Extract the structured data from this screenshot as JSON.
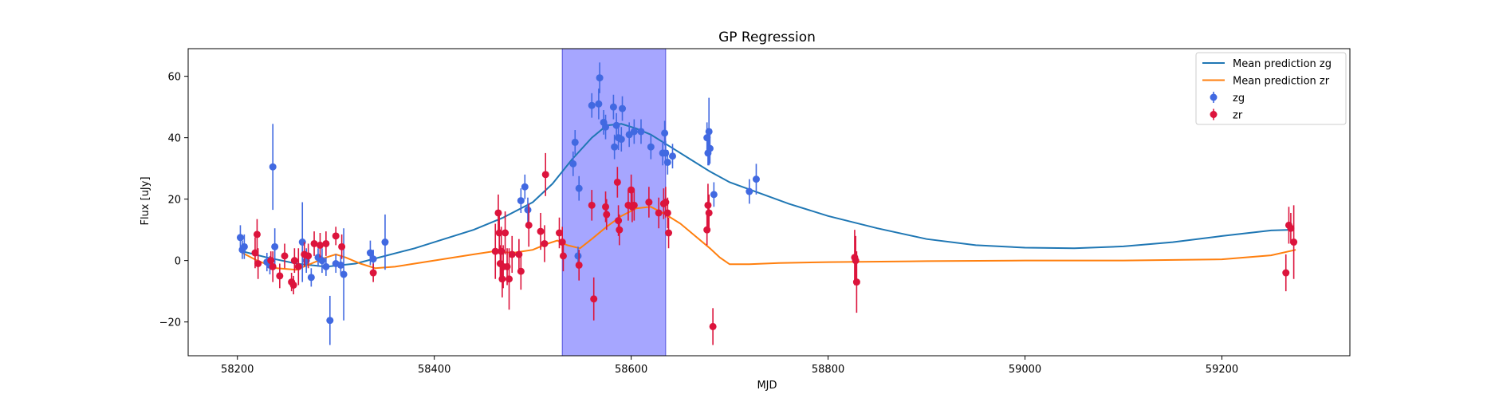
{
  "chart_data": {
    "type": "scatter",
    "title": "GP Regression",
    "xlabel": "MJD",
    "ylabel": "Flux [uJy]",
    "xlim": [
      58150,
      59330
    ],
    "ylim": [
      -31,
      69
    ],
    "x_ticks": [
      58200,
      58400,
      58600,
      58800,
      59000,
      59200
    ],
    "y_ticks": [
      -20,
      0,
      20,
      40,
      60
    ],
    "grid": false,
    "legend_position": "top-right",
    "shaded_region": {
      "x_start": 58530,
      "x_end": 58635,
      "color": "#a6a6ff"
    },
    "series": [
      {
        "name": "Mean prediction zg",
        "kind": "line",
        "color": "#1f77b4",
        "points": [
          [
            58205,
            3
          ],
          [
            58230,
            1
          ],
          [
            58260,
            -1
          ],
          [
            58290,
            -2
          ],
          [
            58320,
            -1
          ],
          [
            58350,
            1.5
          ],
          [
            58380,
            4
          ],
          [
            58410,
            7
          ],
          [
            58440,
            10
          ],
          [
            58470,
            14
          ],
          [
            58500,
            19
          ],
          [
            58520,
            25
          ],
          [
            58540,
            33
          ],
          [
            58560,
            40
          ],
          [
            58575,
            44
          ],
          [
            58590,
            44.5
          ],
          [
            58605,
            43
          ],
          [
            58620,
            41
          ],
          [
            58640,
            37
          ],
          [
            58660,
            33
          ],
          [
            58680,
            29
          ],
          [
            58700,
            25.5
          ],
          [
            58730,
            22
          ],
          [
            58760,
            18.5
          ],
          [
            58800,
            14.5
          ],
          [
            58850,
            10.5
          ],
          [
            58900,
            7
          ],
          [
            58950,
            5
          ],
          [
            59000,
            4.2
          ],
          [
            59050,
            4
          ],
          [
            59100,
            4.6
          ],
          [
            59150,
            6
          ],
          [
            59200,
            8
          ],
          [
            59250,
            9.8
          ],
          [
            59270,
            10
          ]
        ]
      },
      {
        "name": "Mean prediction zr",
        "kind": "line",
        "color": "#ff7f0e",
        "points": [
          [
            58205,
            2.5
          ],
          [
            58220,
            0
          ],
          [
            58240,
            -2.5
          ],
          [
            58260,
            -3
          ],
          [
            58275,
            -1
          ],
          [
            58290,
            1
          ],
          [
            58300,
            2
          ],
          [
            58310,
            1
          ],
          [
            58325,
            -1
          ],
          [
            58340,
            -2.5
          ],
          [
            58360,
            -2
          ],
          [
            58380,
            -1
          ],
          [
            58400,
            0
          ],
          [
            58420,
            1
          ],
          [
            58440,
            2
          ],
          [
            58460,
            3
          ],
          [
            58480,
            2.5
          ],
          [
            58500,
            3.5
          ],
          [
            58515,
            5.5
          ],
          [
            58525,
            6.5
          ],
          [
            58535,
            5
          ],
          [
            58548,
            4
          ],
          [
            58560,
            7
          ],
          [
            58575,
            11
          ],
          [
            58590,
            14.5
          ],
          [
            58605,
            17
          ],
          [
            58620,
            17.5
          ],
          [
            58635,
            15
          ],
          [
            58650,
            12
          ],
          [
            58665,
            8
          ],
          [
            58680,
            4
          ],
          [
            58690,
            1
          ],
          [
            58700,
            -1.2
          ],
          [
            58720,
            -1.2
          ],
          [
            58750,
            -0.8
          ],
          [
            58800,
            -0.5
          ],
          [
            58900,
            -0.2
          ],
          [
            59000,
            0
          ],
          [
            59100,
            0
          ],
          [
            59200,
            0.4
          ],
          [
            59250,
            1.7
          ],
          [
            59275,
            3.5
          ]
        ]
      },
      {
        "name": "zg",
        "kind": "errorbar",
        "color": "#4169e1",
        "points": [
          {
            "x": 58203,
            "y": 7.5,
            "err": 4
          },
          {
            "x": 58205,
            "y": 3.5,
            "err": 3
          },
          {
            "x": 58207,
            "y": 4.5,
            "err": 4
          },
          {
            "x": 58230,
            "y": -0.5,
            "err": 3
          },
          {
            "x": 58233,
            "y": -1.5,
            "err": 3
          },
          {
            "x": 58236,
            "y": 30.5,
            "err": 14
          },
          {
            "x": 58238,
            "y": 4.5,
            "err": 6
          },
          {
            "x": 58266,
            "y": 6,
            "err": 13
          },
          {
            "x": 58270,
            "y": 0,
            "err": 4
          },
          {
            "x": 58275,
            "y": -5.5,
            "err": 3
          },
          {
            "x": 58282,
            "y": 1,
            "err": 3
          },
          {
            "x": 58286,
            "y": 0,
            "err": 4
          },
          {
            "x": 58290,
            "y": -2,
            "err": 3
          },
          {
            "x": 58294,
            "y": -19.5,
            "err": 8
          },
          {
            "x": 58300,
            "y": -1,
            "err": 3
          },
          {
            "x": 58305,
            "y": -1.5,
            "err": 3
          },
          {
            "x": 58308,
            "y": -4.5,
            "err": 15
          },
          {
            "x": 58335,
            "y": 2.5,
            "err": 4
          },
          {
            "x": 58338,
            "y": 0.5,
            "err": 3
          },
          {
            "x": 58350,
            "y": 6,
            "err": 9
          },
          {
            "x": 58488,
            "y": 19.5,
            "err": 4
          },
          {
            "x": 58492,
            "y": 24,
            "err": 4
          },
          {
            "x": 58495,
            "y": 16.5,
            "err": 4
          },
          {
            "x": 58541,
            "y": 31.5,
            "err": 4
          },
          {
            "x": 58543,
            "y": 38.5,
            "err": 4
          },
          {
            "x": 58546,
            "y": 1.5,
            "err": 3
          },
          {
            "x": 58547,
            "y": 23.5,
            "err": 4
          },
          {
            "x": 58560,
            "y": 50.5,
            "err": 4
          },
          {
            "x": 58567,
            "y": 51,
            "err": 5
          },
          {
            "x": 58568,
            "y": 59.5,
            "err": 5
          },
          {
            "x": 58572,
            "y": 45,
            "err": 4
          },
          {
            "x": 58574,
            "y": 43.5,
            "err": 4
          },
          {
            "x": 58582,
            "y": 50,
            "err": 4
          },
          {
            "x": 58583,
            "y": 37,
            "err": 4
          },
          {
            "x": 58585,
            "y": 44,
            "err": 4
          },
          {
            "x": 58587,
            "y": 40,
            "err": 4
          },
          {
            "x": 58590,
            "y": 39.5,
            "err": 4
          },
          {
            "x": 58591,
            "y": 49.5,
            "err": 4
          },
          {
            "x": 58598,
            "y": 41,
            "err": 4
          },
          {
            "x": 58603,
            "y": 42,
            "err": 4
          },
          {
            "x": 58610,
            "y": 42,
            "err": 4
          },
          {
            "x": 58620,
            "y": 37,
            "err": 4
          },
          {
            "x": 58632,
            "y": 35,
            "err": 4
          },
          {
            "x": 58634,
            "y": 41.5,
            "err": 4
          },
          {
            "x": 58635,
            "y": 35,
            "err": 4
          },
          {
            "x": 58637,
            "y": 32,
            "err": 4
          },
          {
            "x": 58642,
            "y": 34,
            "err": 4
          },
          {
            "x": 58677,
            "y": 40,
            "err": 5
          },
          {
            "x": 58678,
            "y": 35,
            "err": 4
          },
          {
            "x": 58679,
            "y": 42,
            "err": 11
          },
          {
            "x": 58680,
            "y": 36.5,
            "err": 5
          },
          {
            "x": 58684,
            "y": 21.5,
            "err": 4
          },
          {
            "x": 58720,
            "y": 22.5,
            "err": 4
          },
          {
            "x": 58727,
            "y": 26.5,
            "err": 5
          }
        ]
      },
      {
        "name": "zr",
        "kind": "errorbar",
        "color": "#dc143c",
        "points": [
          {
            "x": 58218,
            "y": 2.5,
            "err": 5
          },
          {
            "x": 58220,
            "y": 8.5,
            "err": 5
          },
          {
            "x": 58221,
            "y": -1,
            "err": 5
          },
          {
            "x": 58234,
            "y": 0,
            "err": 3
          },
          {
            "x": 58236,
            "y": -2,
            "err": 5
          },
          {
            "x": 58243,
            "y": -5,
            "err": 4
          },
          {
            "x": 58248,
            "y": 1.5,
            "err": 4
          },
          {
            "x": 58255,
            "y": -7,
            "err": 3
          },
          {
            "x": 58257,
            "y": -8,
            "err": 3
          },
          {
            "x": 58258,
            "y": 0,
            "err": 4
          },
          {
            "x": 58262,
            "y": -2,
            "err": 6
          },
          {
            "x": 58268,
            "y": 2,
            "err": 4
          },
          {
            "x": 58272,
            "y": 1.5,
            "err": 4
          },
          {
            "x": 58278,
            "y": 5.5,
            "err": 4
          },
          {
            "x": 58284,
            "y": 5,
            "err": 4
          },
          {
            "x": 58290,
            "y": 5.5,
            "err": 4
          },
          {
            "x": 58300,
            "y": 8,
            "err": 3
          },
          {
            "x": 58306,
            "y": 4.5,
            "err": 4
          },
          {
            "x": 58338,
            "y": -4,
            "err": 3
          },
          {
            "x": 58462,
            "y": 3,
            "err": 9
          },
          {
            "x": 58465,
            "y": 15.5,
            "err": 6
          },
          {
            "x": 58466,
            "y": 9,
            "err": 6
          },
          {
            "x": 58467,
            "y": -1,
            "err": 6
          },
          {
            "x": 58468,
            "y": 3,
            "err": 8
          },
          {
            "x": 58469,
            "y": -6,
            "err": 6
          },
          {
            "x": 58470,
            "y": -2,
            "err": 7
          },
          {
            "x": 58472,
            "y": 9,
            "err": 7
          },
          {
            "x": 58474,
            "y": -2,
            "err": 6
          },
          {
            "x": 58476,
            "y": -6,
            "err": 10
          },
          {
            "x": 58479,
            "y": 2,
            "err": 6
          },
          {
            "x": 58486,
            "y": 2,
            "err": 5
          },
          {
            "x": 58488,
            "y": -3.5,
            "err": 6
          },
          {
            "x": 58496,
            "y": 11.5,
            "err": 7
          },
          {
            "x": 58508,
            "y": 9.5,
            "err": 6
          },
          {
            "x": 58512,
            "y": 5.5,
            "err": 6
          },
          {
            "x": 58513,
            "y": 28,
            "err": 7
          },
          {
            "x": 58527,
            "y": 9,
            "err": 5
          },
          {
            "x": 58530,
            "y": 6,
            "err": 5
          },
          {
            "x": 58531,
            "y": 1.5,
            "err": 5
          },
          {
            "x": 58547,
            "y": -1.5,
            "err": 5
          },
          {
            "x": 58560,
            "y": 18,
            "err": 5
          },
          {
            "x": 58562,
            "y": -12.5,
            "err": 7
          },
          {
            "x": 58574,
            "y": 17.5,
            "err": 5
          },
          {
            "x": 58575,
            "y": 15,
            "err": 5
          },
          {
            "x": 58586,
            "y": 25.5,
            "err": 5
          },
          {
            "x": 58587,
            "y": 13,
            "err": 5
          },
          {
            "x": 58588,
            "y": 10,
            "err": 5
          },
          {
            "x": 58597,
            "y": 18,
            "err": 5
          },
          {
            "x": 58600,
            "y": 23,
            "err": 5
          },
          {
            "x": 58601,
            "y": 17.5,
            "err": 5
          },
          {
            "x": 58603,
            "y": 18,
            "err": 5
          },
          {
            "x": 58618,
            "y": 19,
            "err": 5
          },
          {
            "x": 58628,
            "y": 15.5,
            "err": 5
          },
          {
            "x": 58633,
            "y": 18.5,
            "err": 5
          },
          {
            "x": 58635,
            "y": 19,
            "err": 5
          },
          {
            "x": 58637,
            "y": 15.5,
            "err": 5
          },
          {
            "x": 58638,
            "y": 9,
            "err": 5
          },
          {
            "x": 58677,
            "y": 10,
            "err": 5
          },
          {
            "x": 58678,
            "y": 18,
            "err": 7
          },
          {
            "x": 58679,
            "y": 15.5,
            "err": 6
          },
          {
            "x": 58683,
            "y": -21.5,
            "err": 6
          },
          {
            "x": 58827,
            "y": 1,
            "err": 9
          },
          {
            "x": 58828,
            "y": 0,
            "err": 8
          },
          {
            "x": 58829,
            "y": -7,
            "err": 10
          },
          {
            "x": 59265,
            "y": -4,
            "err": 6
          },
          {
            "x": 59268,
            "y": 11.5,
            "err": 6
          },
          {
            "x": 59270,
            "y": 10.5,
            "err": 5
          },
          {
            "x": 59273,
            "y": 6,
            "err": 12
          }
        ]
      }
    ]
  }
}
